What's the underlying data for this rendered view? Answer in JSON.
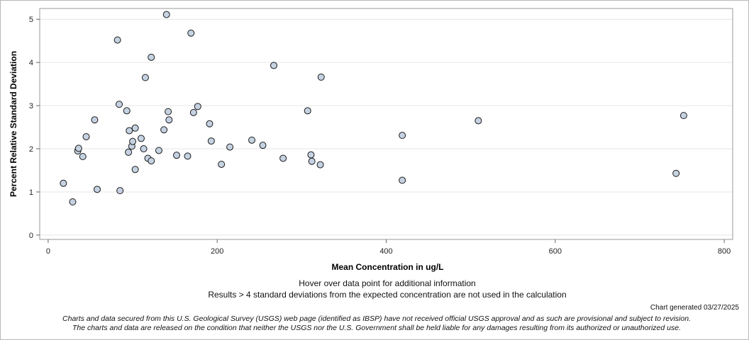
{
  "chart_data": {
    "type": "scatter",
    "title": "",
    "xlabel": "Mean Concentration in ug/L",
    "ylabel": "Percent Relative Standard Deviation",
    "xlim": [
      -10,
      810
    ],
    "ylim": [
      -0.1,
      5.25
    ],
    "xticks": [
      0,
      200,
      400,
      600,
      800
    ],
    "yticks": [
      0,
      1,
      2,
      3,
      4,
      5
    ],
    "grid": "horizontal",
    "marker_color": "#c5d2e2",
    "marker_edge": "#1a1a1a",
    "points": [
      {
        "x": 18,
        "y": 1.2
      },
      {
        "x": 29,
        "y": 0.77
      },
      {
        "x": 35,
        "y": 1.95
      },
      {
        "x": 36,
        "y": 2.01
      },
      {
        "x": 41,
        "y": 1.82
      },
      {
        "x": 45,
        "y": 2.28
      },
      {
        "x": 55,
        "y": 2.67
      },
      {
        "x": 58,
        "y": 1.06
      },
      {
        "x": 82,
        "y": 4.52
      },
      {
        "x": 84,
        "y": 3.03
      },
      {
        "x": 85,
        "y": 1.03
      },
      {
        "x": 93,
        "y": 2.88
      },
      {
        "x": 95,
        "y": 1.92
      },
      {
        "x": 96,
        "y": 2.42
      },
      {
        "x": 99,
        "y": 2.06
      },
      {
        "x": 100,
        "y": 2.17
      },
      {
        "x": 103,
        "y": 2.48
      },
      {
        "x": 103,
        "y": 1.52
      },
      {
        "x": 110,
        "y": 2.24
      },
      {
        "x": 113,
        "y": 2.0
      },
      {
        "x": 115,
        "y": 3.65
      },
      {
        "x": 118,
        "y": 1.78
      },
      {
        "x": 122,
        "y": 4.12
      },
      {
        "x": 122,
        "y": 1.72
      },
      {
        "x": 131,
        "y": 1.96
      },
      {
        "x": 137,
        "y": 2.44
      },
      {
        "x": 140,
        "y": 5.11
      },
      {
        "x": 142,
        "y": 2.86
      },
      {
        "x": 143,
        "y": 2.67
      },
      {
        "x": 152,
        "y": 1.85
      },
      {
        "x": 165,
        "y": 1.83
      },
      {
        "x": 169,
        "y": 4.68
      },
      {
        "x": 172,
        "y": 2.84
      },
      {
        "x": 177,
        "y": 2.98
      },
      {
        "x": 191,
        "y": 2.58
      },
      {
        "x": 193,
        "y": 2.18
      },
      {
        "x": 205,
        "y": 1.64
      },
      {
        "x": 215,
        "y": 2.04
      },
      {
        "x": 241,
        "y": 2.2
      },
      {
        "x": 254,
        "y": 2.08
      },
      {
        "x": 267,
        "y": 3.93
      },
      {
        "x": 278,
        "y": 1.78
      },
      {
        "x": 307,
        "y": 2.88
      },
      {
        "x": 311,
        "y": 1.86
      },
      {
        "x": 312,
        "y": 1.71
      },
      {
        "x": 322,
        "y": 1.63
      },
      {
        "x": 323,
        "y": 3.66
      },
      {
        "x": 419,
        "y": 2.31
      },
      {
        "x": 419,
        "y": 1.27
      },
      {
        "x": 509,
        "y": 2.65
      },
      {
        "x": 743,
        "y": 1.43
      },
      {
        "x": 752,
        "y": 2.77
      }
    ]
  },
  "notes": {
    "hover": "Hover over data point for additional information",
    "results": "Results > 4 standard deviations from the expected concentration are not used in the calculation",
    "generated": "Chart generated 03/27/2025",
    "disclaimer_line1": "Charts and data secured from this U.S. Geological Survey (USGS) web page (identified as IBSP) have not received official USGS approval and as such are provisional and subject to revision.",
    "disclaimer_line2": "The charts and data are released on the condition that neither the USGS nor the U.S. Government shall be held liable for any damages resulting from its authorized or unauthorized use."
  }
}
